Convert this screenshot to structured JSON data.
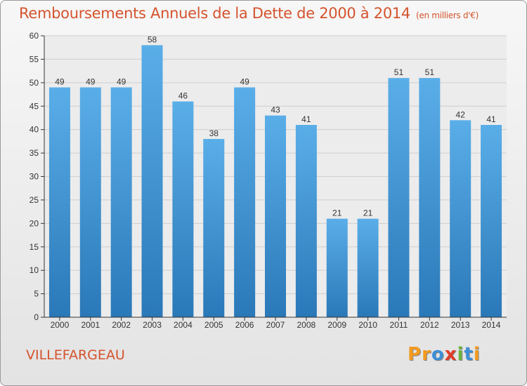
{
  "chart_data": {
    "type": "bar",
    "title": "Remboursements Annuels de la Dette de 2000 à 2014",
    "unit_note": "(en milliers d'€)",
    "categories": [
      "2000",
      "2001",
      "2002",
      "2003",
      "2004",
      "2005",
      "2006",
      "2007",
      "2008",
      "2009",
      "2010",
      "2011",
      "2012",
      "2013",
      "2014"
    ],
    "values": [
      49,
      49,
      49,
      58,
      46,
      38,
      49,
      43,
      41,
      21,
      21,
      51,
      51,
      42,
      41
    ],
    "ylim": [
      0,
      60
    ],
    "yticks": [
      0,
      5,
      10,
      15,
      20,
      25,
      30,
      35,
      40,
      45,
      50,
      55,
      60
    ],
    "grid": true,
    "bar_color_top": "#5aaee8",
    "bar_color_bottom": "#2a78b8",
    "xlabel": "",
    "ylabel": ""
  },
  "commune": "VILLEFARGEAU",
  "logo": {
    "text": "Proxiti",
    "letters": [
      "P",
      "r",
      "o",
      "x",
      "i",
      "t",
      "i"
    ],
    "colors": [
      "#f39a1f",
      "#f39a1f",
      "#3e8fd6",
      "#e23b2a",
      "#6cb33f",
      "#3e8fd6",
      "#f39a1f"
    ]
  },
  "colors": {
    "accent": "#d4532d",
    "axis": "#333333",
    "grid": "#cfcfcf"
  }
}
